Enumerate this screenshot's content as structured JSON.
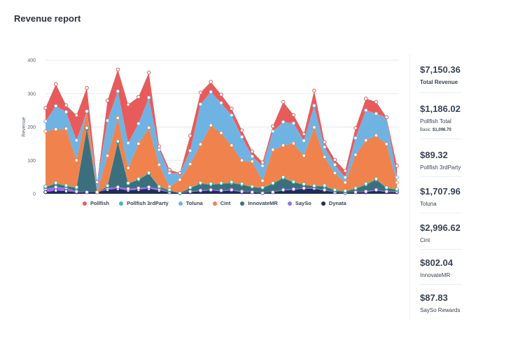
{
  "header": {
    "title": "Revenue report"
  },
  "chart_data": {
    "type": "area",
    "ylabel": "Revenue",
    "xlabel": "",
    "ylim": [
      0,
      400
    ],
    "yticks": [
      0,
      100,
      200,
      300,
      400
    ],
    "grid": true,
    "stacked": true,
    "legend_position": "bottom",
    "series": [
      {
        "name": "Dynata",
        "color": "#1f2d54",
        "values": [
          5,
          10,
          8,
          5,
          5,
          5,
          12,
          15,
          10,
          12,
          15,
          10,
          5,
          2,
          5,
          8,
          10,
          8,
          10,
          5,
          5,
          2,
          5,
          10,
          12,
          15,
          15,
          10,
          5,
          2,
          5,
          5,
          10,
          5,
          5
        ]
      },
      {
        "name": "SaySo",
        "color": "#9b6ee6",
        "values": [
          10,
          10,
          10,
          2,
          0,
          0,
          5,
          5,
          5,
          5,
          5,
          5,
          0,
          0,
          2,
          2,
          2,
          2,
          2,
          2,
          0,
          0,
          0,
          2,
          2,
          2,
          2,
          2,
          0,
          0,
          0,
          2,
          2,
          2,
          2
        ]
      },
      {
        "name": "InnovateMR",
        "color": "#3b6f7d",
        "values": [
          5,
          10,
          5,
          10,
          190,
          0,
          5,
          135,
          15,
          25,
          40,
          5,
          5,
          0,
          10,
          20,
          15,
          20,
          20,
          20,
          15,
          15,
          25,
          35,
          20,
          10,
          5,
          10,
          5,
          5,
          10,
          20,
          30,
          10,
          5
        ]
      },
      {
        "name": "Pollfish 3rdParty",
        "color": "#46b8a8",
        "values": [
          2,
          3,
          2,
          3,
          2,
          0,
          2,
          2,
          2,
          3,
          3,
          2,
          2,
          0,
          2,
          3,
          3,
          2,
          3,
          3,
          2,
          2,
          2,
          3,
          2,
          2,
          2,
          3,
          2,
          2,
          2,
          3,
          3,
          2,
          2
        ]
      },
      {
        "name": "Cint",
        "color": "#f0834d",
        "values": [
          165,
          160,
          170,
          80,
          50,
          0,
          90,
          70,
          45,
          105,
          135,
          65,
          10,
          40,
          70,
          115,
          175,
          150,
          110,
          70,
          75,
          20,
          100,
          95,
          115,
          85,
          175,
          85,
          50,
          25,
          100,
          130,
          130,
          130,
          20
        ]
      },
      {
        "name": "Toluna",
        "color": "#6fb3e3",
        "values": [
          30,
          70,
          50,
          60,
          0,
          30,
          105,
          80,
          75,
          60,
          90,
          45,
          40,
          20,
          40,
          120,
          100,
          90,
          90,
          70,
          15,
          45,
          55,
          70,
          60,
          45,
          65,
          30,
          25,
          15,
          50,
          90,
          65,
          80,
          15
        ]
      },
      {
        "name": "Pollfish",
        "color": "#e85b5b",
        "values": [
          40,
          65,
          20,
          75,
          70,
          0,
          60,
          65,
          115,
          80,
          75,
          10,
          10,
          0,
          45,
          35,
          30,
          25,
          20,
          20,
          15,
          10,
          15,
          60,
          25,
          20,
          45,
          15,
          15,
          20,
          30,
          35,
          35,
          0,
          35
        ]
      }
    ]
  },
  "panel": {
    "stats": [
      {
        "value": "$7,150.36",
        "label": "Total Revenue",
        "bold": true
      },
      {
        "value": "$1,186.02",
        "label": "Pollfish Total",
        "sub_label": "Basic:",
        "sub_value": "$1,096.70"
      },
      {
        "value": "$89.32",
        "label": "Pollfish 3rdParty"
      },
      {
        "value": "$1,707.96",
        "label": "Toluna"
      },
      {
        "value": "$2,996.62",
        "label": "Cint"
      },
      {
        "value": "$802.04",
        "label": "InnovateMR"
      },
      {
        "value": "$87.83",
        "label": "SaySo Rewards"
      }
    ]
  }
}
